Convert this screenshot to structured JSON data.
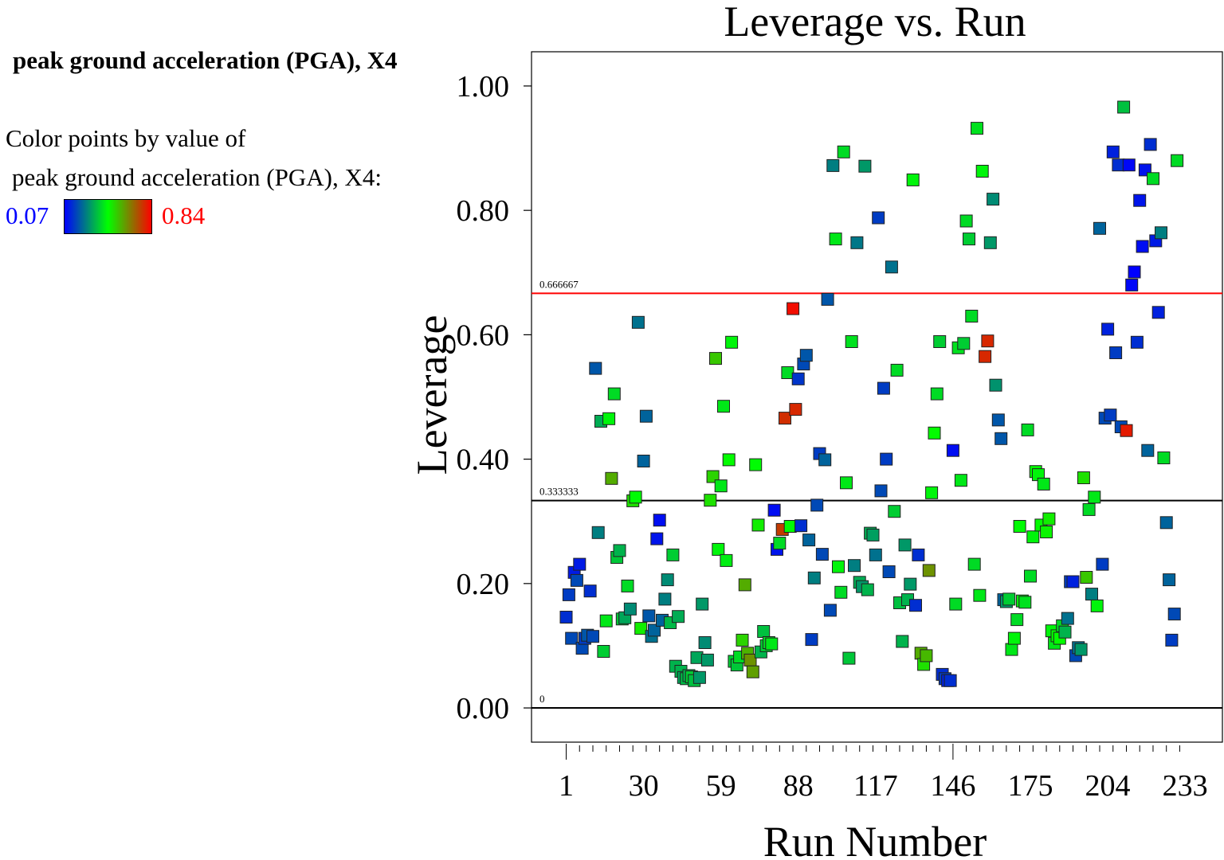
{
  "subtitle": "peak ground acceleration (PGA), X4",
  "colorbar": {
    "line1": "Color points by value of",
    "line2": "peak ground acceleration (PGA), X4:",
    "min_label": "0.07",
    "max_label": "0.84",
    "min_color": "#0000ff",
    "mid_color": "#00ff00",
    "max_color": "#ff0000"
  },
  "chart_data": {
    "type": "scatter",
    "title": "Leverage vs. Run",
    "xlabel": "Run Number",
    "ylabel": "Leverage",
    "xlim": [
      -12,
      247
    ],
    "ylim": [
      -0.055,
      1.055
    ],
    "xticks": [
      1,
      30,
      59,
      88,
      117,
      146,
      175,
      204,
      233
    ],
    "yticks": [
      "0.00",
      "0.20",
      "0.40",
      "0.60",
      "0.80",
      "1.00"
    ],
    "color_range": [
      0.07,
      0.84
    ],
    "reference_lines": [
      {
        "value": 0.666667,
        "label": "0.666667",
        "color": "#ff0000"
      },
      {
        "value": 0.333333,
        "label": "0.333333",
        "color": "#000000"
      },
      {
        "value": 0,
        "label": "0",
        "color": "#000000"
      }
    ],
    "points": [
      [
        1,
        0.146,
        0.14
      ],
      [
        2,
        0.182,
        0.16
      ],
      [
        3,
        0.112,
        0.18
      ],
      [
        4,
        0.218,
        0.11
      ],
      [
        5,
        0.205,
        0.18
      ],
      [
        6,
        0.231,
        0.11
      ],
      [
        7,
        0.096,
        0.18
      ],
      [
        8,
        0.112,
        0.16
      ],
      [
        9,
        0.117,
        0.2
      ],
      [
        10,
        0.188,
        0.14
      ],
      [
        11,
        0.115,
        0.18
      ],
      [
        12,
        0.546,
        0.2
      ],
      [
        13,
        0.282,
        0.26
      ],
      [
        14,
        0.461,
        0.33
      ],
      [
        15,
        0.091,
        0.38
      ],
      [
        16,
        0.14,
        0.42
      ],
      [
        17,
        0.465,
        0.44
      ],
      [
        18,
        0.369,
        0.58
      ],
      [
        19,
        0.505,
        0.4
      ],
      [
        20,
        0.242,
        0.37
      ],
      [
        21,
        0.253,
        0.34
      ],
      [
        22,
        0.143,
        0.37
      ],
      [
        23,
        0.145,
        0.32
      ],
      [
        24,
        0.196,
        0.4
      ],
      [
        25,
        0.159,
        0.28
      ],
      [
        26,
        0.333,
        0.5
      ],
      [
        27,
        0.339,
        0.45
      ],
      [
        28,
        0.62,
        0.24
      ],
      [
        29,
        0.128,
        0.48
      ],
      [
        30,
        0.397,
        0.22
      ],
      [
        31,
        0.469,
        0.22
      ],
      [
        32,
        0.148,
        0.2
      ],
      [
        33,
        0.115,
        0.24
      ],
      [
        34,
        0.125,
        0.22
      ],
      [
        35,
        0.272,
        0.1
      ],
      [
        36,
        0.302,
        0.09
      ],
      [
        37,
        0.141,
        0.22
      ],
      [
        38,
        0.175,
        0.26
      ],
      [
        39,
        0.206,
        0.28
      ],
      [
        40,
        0.137,
        0.35
      ],
      [
        41,
        0.246,
        0.38
      ],
      [
        42,
        0.067,
        0.34
      ],
      [
        43,
        0.147,
        0.33
      ],
      [
        44,
        0.059,
        0.34
      ],
      [
        45,
        0.049,
        0.32
      ],
      [
        46,
        0.047,
        0.35
      ],
      [
        47,
        0.052,
        0.34
      ],
      [
        48,
        0.05,
        0.38
      ],
      [
        49,
        0.044,
        0.36
      ],
      [
        50,
        0.081,
        0.32
      ],
      [
        51,
        0.049,
        0.3
      ],
      [
        52,
        0.167,
        0.3
      ],
      [
        53,
        0.105,
        0.28
      ],
      [
        54,
        0.077,
        0.3
      ],
      [
        55,
        0.334,
        0.5
      ],
      [
        56,
        0.372,
        0.52
      ],
      [
        57,
        0.562,
        0.54
      ],
      [
        58,
        0.255,
        0.44
      ],
      [
        59,
        0.357,
        0.42
      ],
      [
        60,
        0.485,
        0.42
      ],
      [
        61,
        0.237,
        0.43
      ],
      [
        62,
        0.399,
        0.46
      ],
      [
        63,
        0.588,
        0.44
      ],
      [
        64,
        0.075,
        0.38
      ],
      [
        65,
        0.069,
        0.37
      ],
      [
        66,
        0.082,
        0.4
      ],
      [
        67,
        0.109,
        0.52
      ],
      [
        68,
        0.198,
        0.58
      ],
      [
        69,
        0.088,
        0.57
      ],
      [
        70,
        0.077,
        0.62
      ],
      [
        71,
        0.058,
        0.6
      ],
      [
        72,
        0.391,
        0.45
      ],
      [
        73,
        0.294,
        0.48
      ],
      [
        74,
        0.09,
        0.34
      ],
      [
        75,
        0.123,
        0.36
      ],
      [
        76,
        0.1,
        0.38
      ],
      [
        77,
        0.105,
        0.4
      ],
      [
        78,
        0.103,
        0.42
      ],
      [
        79,
        0.318,
        0.09
      ],
      [
        80,
        0.255,
        0.1
      ],
      [
        81,
        0.265,
        0.4
      ],
      [
        82,
        0.287,
        0.75
      ],
      [
        83,
        0.466,
        0.77
      ],
      [
        84,
        0.539,
        0.4
      ],
      [
        85,
        0.292,
        0.45
      ],
      [
        86,
        0.642,
        0.82
      ],
      [
        87,
        0.48,
        0.78
      ],
      [
        88,
        0.529,
        0.15
      ],
      [
        89,
        0.293,
        0.14
      ],
      [
        90,
        0.553,
        0.18
      ],
      [
        91,
        0.567,
        0.2
      ],
      [
        92,
        0.27,
        0.22
      ],
      [
        93,
        0.11,
        0.16
      ],
      [
        94,
        0.209,
        0.26
      ],
      [
        95,
        0.326,
        0.18
      ],
      [
        96,
        0.409,
        0.16
      ],
      [
        97,
        0.247,
        0.18
      ],
      [
        98,
        0.399,
        0.22
      ],
      [
        99,
        0.657,
        0.2
      ],
      [
        100,
        0.157,
        0.18
      ],
      [
        101,
        0.872,
        0.26
      ],
      [
        102,
        0.754,
        0.42
      ],
      [
        103,
        0.227,
        0.44
      ],
      [
        104,
        0.186,
        0.4
      ],
      [
        105,
        0.894,
        0.4
      ],
      [
        106,
        0.362,
        0.42
      ],
      [
        107,
        0.08,
        0.37
      ],
      [
        108,
        0.589,
        0.41
      ],
      [
        109,
        0.229,
        0.26
      ],
      [
        110,
        0.748,
        0.25
      ],
      [
        111,
        0.202,
        0.33
      ],
      [
        112,
        0.195,
        0.3
      ],
      [
        113,
        0.871,
        0.3
      ],
      [
        114,
        0.19,
        0.34
      ],
      [
        115,
        0.281,
        0.33
      ],
      [
        116,
        0.278,
        0.31
      ],
      [
        117,
        0.246,
        0.24
      ],
      [
        118,
        0.788,
        0.16
      ],
      [
        119,
        0.349,
        0.18
      ],
      [
        120,
        0.514,
        0.16
      ],
      [
        121,
        0.4,
        0.16
      ],
      [
        122,
        0.219,
        0.18
      ],
      [
        123,
        0.709,
        0.24
      ],
      [
        124,
        0.316,
        0.38
      ],
      [
        125,
        0.543,
        0.4
      ],
      [
        126,
        0.169,
        0.36
      ],
      [
        127,
        0.107,
        0.34
      ],
      [
        128,
        0.262,
        0.3
      ],
      [
        129,
        0.174,
        0.34
      ],
      [
        130,
        0.199,
        0.3
      ],
      [
        131,
        0.849,
        0.44
      ],
      [
        132,
        0.165,
        0.14
      ],
      [
        133,
        0.246,
        0.14
      ],
      [
        134,
        0.088,
        0.58
      ],
      [
        135,
        0.07,
        0.5
      ],
      [
        136,
        0.084,
        0.56
      ],
      [
        137,
        0.221,
        0.62
      ],
      [
        138,
        0.346,
        0.44
      ],
      [
        139,
        0.442,
        0.46
      ],
      [
        140,
        0.505,
        0.4
      ],
      [
        141,
        0.589,
        0.38
      ],
      [
        142,
        0.054,
        0.14
      ],
      [
        143,
        0.047,
        0.16
      ],
      [
        144,
        0.044,
        0.12
      ],
      [
        145,
        0.044,
        0.14
      ],
      [
        146,
        0.414,
        0.09
      ],
      [
        147,
        0.167,
        0.4
      ],
      [
        148,
        0.579,
        0.41
      ],
      [
        149,
        0.366,
        0.42
      ],
      [
        150,
        0.586,
        0.38
      ],
      [
        151,
        0.783,
        0.4
      ],
      [
        152,
        0.754,
        0.38
      ],
      [
        153,
        0.63,
        0.4
      ],
      [
        154,
        0.231,
        0.4
      ],
      [
        155,
        0.932,
        0.41
      ],
      [
        156,
        0.181,
        0.42
      ],
      [
        157,
        0.863,
        0.44
      ],
      [
        158,
        0.565,
        0.78
      ],
      [
        159,
        0.59,
        0.78
      ],
      [
        160,
        0.748,
        0.3
      ],
      [
        161,
        0.818,
        0.28
      ],
      [
        162,
        0.519,
        0.29
      ],
      [
        163,
        0.463,
        0.2
      ],
      [
        164,
        0.433,
        0.2
      ],
      [
        165,
        0.174,
        0.22
      ],
      [
        166,
        0.171,
        0.3
      ],
      [
        167,
        0.175,
        0.38
      ],
      [
        168,
        0.094,
        0.42
      ],
      [
        169,
        0.112,
        0.44
      ],
      [
        170,
        0.142,
        0.4
      ],
      [
        171,
        0.292,
        0.45
      ],
      [
        172,
        0.172,
        0.44
      ],
      [
        173,
        0.17,
        0.41
      ],
      [
        174,
        0.447,
        0.4
      ],
      [
        175,
        0.212,
        0.4
      ],
      [
        176,
        0.275,
        0.44
      ],
      [
        177,
        0.38,
        0.46
      ],
      [
        178,
        0.375,
        0.44
      ],
      [
        179,
        0.294,
        0.46
      ],
      [
        180,
        0.36,
        0.42
      ],
      [
        181,
        0.283,
        0.47
      ],
      [
        182,
        0.304,
        0.48
      ],
      [
        183,
        0.124,
        0.44
      ],
      [
        184,
        0.104,
        0.42
      ],
      [
        185,
        0.116,
        0.46
      ],
      [
        186,
        0.112,
        0.46
      ],
      [
        187,
        0.132,
        0.4
      ],
      [
        188,
        0.122,
        0.34
      ],
      [
        189,
        0.144,
        0.24
      ],
      [
        190,
        0.203,
        0.16
      ],
      [
        191,
        0.203,
        0.12
      ],
      [
        192,
        0.084,
        0.18
      ],
      [
        193,
        0.097,
        0.24
      ],
      [
        194,
        0.094,
        0.3
      ],
      [
        195,
        0.37,
        0.5
      ],
      [
        196,
        0.21,
        0.54
      ],
      [
        197,
        0.319,
        0.4
      ],
      [
        198,
        0.183,
        0.26
      ],
      [
        199,
        0.339,
        0.42
      ],
      [
        200,
        0.164,
        0.44
      ],
      [
        201,
        0.771,
        0.22
      ],
      [
        202,
        0.231,
        0.16
      ],
      [
        203,
        0.466,
        0.18
      ],
      [
        204,
        0.609,
        0.12
      ],
      [
        205,
        0.471,
        0.16
      ],
      [
        206,
        0.894,
        0.12
      ],
      [
        207,
        0.571,
        0.16
      ],
      [
        208,
        0.873,
        0.14
      ],
      [
        209,
        0.452,
        0.18
      ],
      [
        210,
        0.966,
        0.36
      ],
      [
        211,
        0.446,
        0.8
      ],
      [
        212,
        0.873,
        0.08
      ],
      [
        213,
        0.68,
        0.08
      ],
      [
        214,
        0.701,
        0.07
      ],
      [
        215,
        0.588,
        0.14
      ],
      [
        216,
        0.816,
        0.1
      ],
      [
        217,
        0.742,
        0.09
      ],
      [
        218,
        0.865,
        0.1
      ],
      [
        219,
        0.414,
        0.22
      ],
      [
        220,
        0.906,
        0.14
      ],
      [
        221,
        0.851,
        0.4
      ],
      [
        222,
        0.751,
        0.11
      ],
      [
        223,
        0.636,
        0.12
      ],
      [
        224,
        0.764,
        0.26
      ],
      [
        225,
        0.402,
        0.4
      ],
      [
        226,
        0.298,
        0.22
      ],
      [
        227,
        0.206,
        0.22
      ],
      [
        228,
        0.109,
        0.16
      ],
      [
        229,
        0.151,
        0.18
      ],
      [
        230,
        0.88,
        0.4
      ]
    ]
  }
}
